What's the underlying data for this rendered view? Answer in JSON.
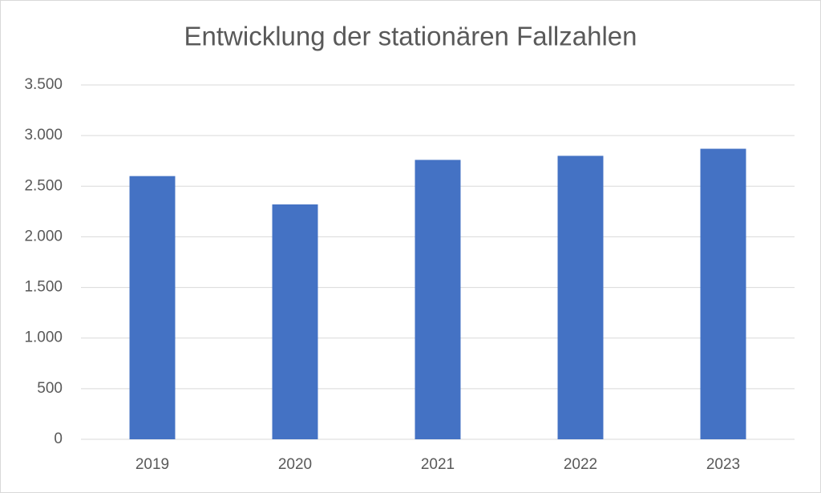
{
  "chart_data": {
    "type": "bar",
    "title": "Entwicklung der stationären Fallzahlen",
    "categories": [
      "2019",
      "2020",
      "2021",
      "2022",
      "2023"
    ],
    "values": [
      2600,
      2320,
      2760,
      2800,
      2870
    ],
    "color": "#4472c4",
    "ylim": [
      0,
      3500
    ],
    "yticks": [
      0,
      500,
      {
        "value": 1000,
        "label": "1.000"
      },
      {
        "value": 1500,
        "label": "1.500"
      },
      {
        "value": 2000,
        "label": "2.000"
      },
      {
        "value": 2500,
        "label": "2.500"
      },
      {
        "value": 3000,
        "label": "3.000"
      },
      {
        "value": 3500,
        "label": "3.500"
      }
    ],
    "grid": true
  }
}
